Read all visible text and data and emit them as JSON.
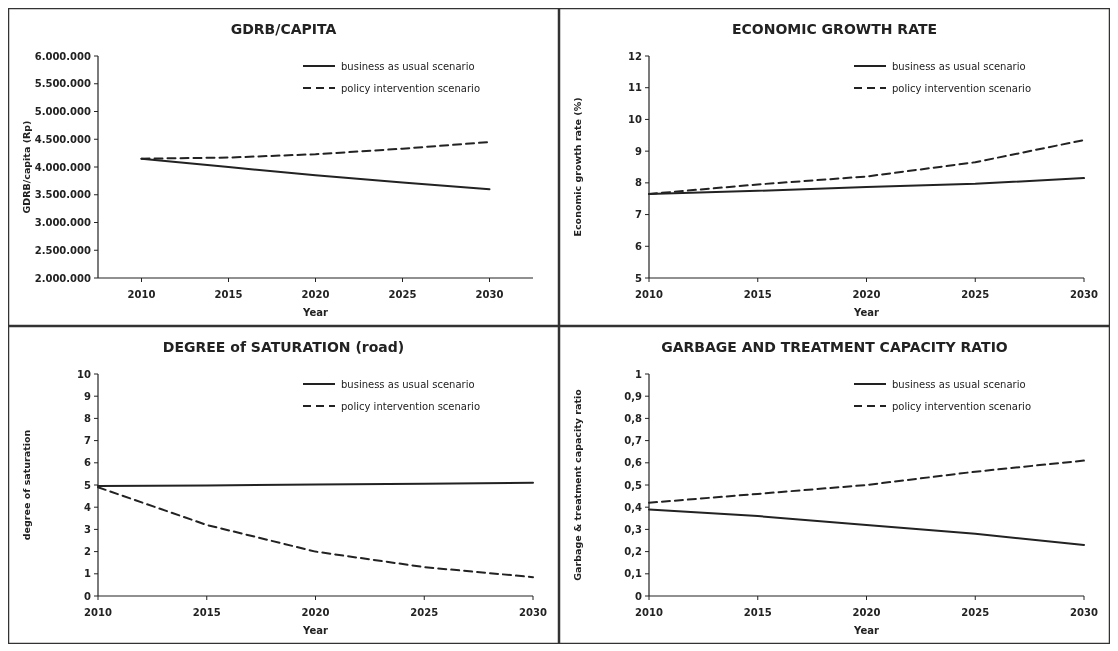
{
  "chart_data": [
    {
      "type": "line",
      "title": "GDRB/CAPITA",
      "xlabel": "Year",
      "ylabel": "GDRB/capita (Rp)",
      "legend": "top right",
      "grid": false,
      "xlim": [
        2007.5,
        2032.5
      ],
      "xticks": [
        2010,
        2015,
        2020,
        2025,
        2030
      ],
      "ylim": [
        2000000,
        6000000
      ],
      "yticks": [
        {
          "value": 2000000,
          "label": "2.000.000"
        },
        {
          "value": 2500000,
          "label": "2.500.000"
        },
        {
          "value": 3000000,
          "label": "3.000.000"
        },
        {
          "value": 3500000,
          "label": "3.500.000"
        },
        {
          "value": 4000000,
          "label": "4.000.000"
        },
        {
          "value": 4500000,
          "label": "4.500.000"
        },
        {
          "value": 5000000,
          "label": "5.000.000"
        },
        {
          "value": 5500000,
          "label": "5.500.000"
        },
        {
          "value": 6000000,
          "label": "6.000.000"
        }
      ],
      "x": [
        2010,
        2015,
        2020,
        2025,
        2030
      ],
      "series": [
        {
          "name": "business as usual scenario",
          "color": "#222222",
          "line_style": "solid",
          "values": [
            4150000,
            4000000,
            3850000,
            3720000,
            3600000
          ]
        },
        {
          "name": "policy intervention scenario",
          "color": "#222222",
          "line_style": "dashed",
          "values": [
            4150000,
            4170000,
            4230000,
            4330000,
            4450000
          ]
        }
      ]
    },
    {
      "type": "line",
      "title": "ECONOMIC GROWTH RATE",
      "xlabel": "Year",
      "ylabel": "Economic growth rate (%)",
      "legend": "top right",
      "grid": false,
      "xlim": [
        2010,
        2030
      ],
      "xticks": [
        2010,
        2015,
        2020,
        2025,
        2030
      ],
      "ylim": [
        5,
        12
      ],
      "yticks": [
        5,
        6,
        7,
        8,
        9,
        10,
        11,
        12
      ],
      "x": [
        2010,
        2015,
        2020,
        2025,
        2030
      ],
      "series": [
        {
          "name": "business as usual scenario",
          "color": "#222222",
          "line_style": "solid",
          "values": [
            7.65,
            7.75,
            7.87,
            7.97,
            8.15
          ]
        },
        {
          "name": "policy intervention scenario",
          "color": "#222222",
          "line_style": "dashed",
          "values": [
            7.65,
            7.95,
            8.2,
            8.65,
            9.35
          ]
        }
      ]
    },
    {
      "type": "line",
      "title": "DEGREE  of SATURATION (road)",
      "xlabel": "Year",
      "ylabel": "degree of saturation",
      "legend": "top right",
      "grid": false,
      "xlim": [
        2010,
        2030
      ],
      "xticks": [
        2010,
        2015,
        2020,
        2025,
        2030
      ],
      "ylim": [
        0,
        10
      ],
      "yticks": [
        0,
        1,
        2,
        3,
        4,
        5,
        6,
        7,
        8,
        9,
        10
      ],
      "x": [
        2010,
        2015,
        2020,
        2025,
        2030
      ],
      "series": [
        {
          "name": "business as usual scenario",
          "color": "#222222",
          "line_style": "solid",
          "values": [
            4.95,
            4.98,
            5.02,
            5.06,
            5.1
          ]
        },
        {
          "name": "policy intervention scenario",
          "color": "#222222",
          "line_style": "dashed",
          "values": [
            4.9,
            3.2,
            2.0,
            1.3,
            0.85
          ]
        }
      ]
    },
    {
      "type": "line",
      "title": "GARBAGE AND TREATMENT CAPACITY RATIO",
      "xlabel": "Year",
      "ylabel": "Garbage & treatment capacity ratio",
      "legend": "top right",
      "grid": false,
      "xlim": [
        2010,
        2030
      ],
      "xticks": [
        2010,
        2015,
        2020,
        2025,
        2030
      ],
      "ylim": [
        0,
        1
      ],
      "yticks": [
        0,
        {
          "value": 0.1,
          "label": "0,1"
        },
        {
          "value": 0.2,
          "label": "0,2"
        },
        {
          "value": 0.3,
          "label": "0,3"
        },
        {
          "value": 0.4,
          "label": "0,4"
        },
        {
          "value": 0.5,
          "label": "0,5"
        },
        {
          "value": 0.6,
          "label": "0,6"
        },
        {
          "value": 0.7,
          "label": "0,7"
        },
        {
          "value": 0.8,
          "label": "0,8"
        },
        {
          "value": 0.9,
          "label": "0,9"
        },
        1
      ],
      "x": [
        2010,
        2015,
        2020,
        2025,
        2030
      ],
      "series": [
        {
          "name": "business as usual scenario",
          "color": "#222222",
          "line_style": "solid",
          "values": [
            0.39,
            0.36,
            0.32,
            0.28,
            0.23
          ]
        },
        {
          "name": "policy intervention scenario",
          "color": "#222222",
          "line_style": "dashed",
          "values": [
            0.42,
            0.46,
            0.5,
            0.56,
            0.61
          ]
        }
      ]
    }
  ]
}
